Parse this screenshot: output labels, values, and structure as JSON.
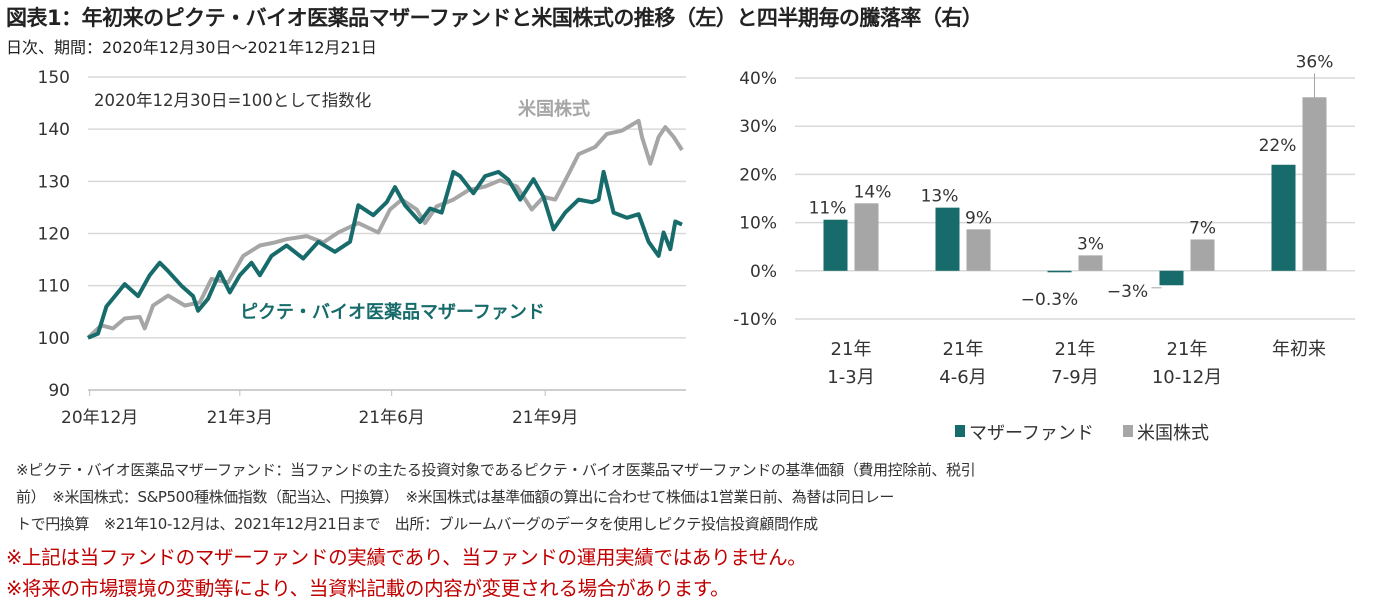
{
  "title": "図表1：年初来のピクテ・バイオ医薬品マザーファンドと米国株式の推移（左）と四半期毎の騰落率（右）",
  "subtitle": "日次、期間：2020年12月30日～2021年12月21日",
  "chart_data": [
    {
      "type": "line",
      "annotation": "2020年12月30日=100として指数化",
      "ylim": [
        90,
        150
      ],
      "yticks": [
        90,
        100,
        110,
        120,
        130,
        140,
        150
      ],
      "xlim": [
        "2020-12-30",
        "2021-12-21"
      ],
      "xticks": [
        {
          "date": "2020-12-31",
          "label": "20年12月"
        },
        {
          "date": "2021-03-31",
          "label": "21年3月"
        },
        {
          "date": "2021-06-30",
          "label": "21年6月"
        },
        {
          "date": "2021-09-30",
          "label": "21年9月"
        }
      ],
      "grid": true,
      "series": [
        {
          "name": "ピクテ・バイオ医薬品マザーファンド",
          "color": "#176b6b",
          "points": [
            [
              "2020-12-30",
              100
            ],
            [
              "2021-01-05",
              100.8
            ],
            [
              "2021-01-10",
              106
            ],
            [
              "2021-01-17",
              108.7
            ],
            [
              "2021-01-21",
              110.3
            ],
            [
              "2021-01-29",
              108
            ],
            [
              "2021-02-05",
              112
            ],
            [
              "2021-02-11",
              114.4
            ],
            [
              "2021-02-16",
              112.8
            ],
            [
              "2021-02-24",
              110
            ],
            [
              "2021-03-03",
              108
            ],
            [
              "2021-03-06",
              105.2
            ],
            [
              "2021-03-12",
              107.5
            ],
            [
              "2021-03-19",
              112.6
            ],
            [
              "2021-03-25",
              108.7
            ],
            [
              "2021-03-31",
              112
            ],
            [
              "2021-04-07",
              114.4
            ],
            [
              "2021-04-12",
              112
            ],
            [
              "2021-04-19",
              115.7
            ],
            [
              "2021-04-28",
              117.7
            ],
            [
              "2021-05-08",
              115.2
            ],
            [
              "2021-05-17",
              118.4
            ],
            [
              "2021-05-27",
              116.5
            ],
            [
              "2021-06-05",
              118.4
            ],
            [
              "2021-06-10",
              125.4
            ],
            [
              "2021-06-19",
              123.5
            ],
            [
              "2021-06-27",
              126
            ],
            [
              "2021-07-02",
              128.9
            ],
            [
              "2021-07-08",
              125.4
            ],
            [
              "2021-07-17",
              122.2
            ],
            [
              "2021-07-23",
              124.8
            ],
            [
              "2021-07-30",
              124
            ],
            [
              "2021-08-06",
              131.8
            ],
            [
              "2021-08-10",
              131
            ],
            [
              "2021-08-18",
              127.7
            ],
            [
              "2021-08-25",
              131
            ],
            [
              "2021-09-02",
              131.8
            ],
            [
              "2021-09-08",
              130.3
            ],
            [
              "2021-09-15",
              126.5
            ],
            [
              "2021-09-23",
              130.4
            ],
            [
              "2021-09-29",
              127
            ],
            [
              "2021-10-05",
              120.8
            ],
            [
              "2021-10-12",
              124
            ],
            [
              "2021-10-20",
              126.5
            ],
            [
              "2021-10-28",
              126
            ],
            [
              "2021-11-01",
              126.5
            ],
            [
              "2021-11-04",
              131.8
            ],
            [
              "2021-11-10",
              124
            ],
            [
              "2021-11-18",
              123
            ],
            [
              "2021-11-25",
              123.7
            ],
            [
              "2021-12-01",
              118.4
            ],
            [
              "2021-12-07",
              115.7
            ],
            [
              "2021-12-10",
              120.2
            ],
            [
              "2021-12-14",
              117
            ],
            [
              "2021-12-17",
              122.3
            ],
            [
              "2021-12-21",
              121.7
            ]
          ]
        },
        {
          "name": "米国株式",
          "color": "#a6a6a6",
          "points": [
            [
              "2020-12-30",
              100
            ],
            [
              "2021-01-07",
              102.4
            ],
            [
              "2021-01-14",
              101.8
            ],
            [
              "2021-01-21",
              103.7
            ],
            [
              "2021-01-30",
              104
            ],
            [
              "2021-02-02",
              101.8
            ],
            [
              "2021-02-07",
              106.2
            ],
            [
              "2021-02-16",
              108.1
            ],
            [
              "2021-02-26",
              106.2
            ],
            [
              "2021-03-07",
              106.8
            ],
            [
              "2021-03-14",
              111.3
            ],
            [
              "2021-03-24",
              110.6
            ],
            [
              "2021-04-02",
              115.7
            ],
            [
              "2021-04-12",
              117.7
            ],
            [
              "2021-04-21",
              118.3
            ],
            [
              "2021-04-28",
              118.9
            ],
            [
              "2021-05-10",
              119.5
            ],
            [
              "2021-05-20",
              118.3
            ],
            [
              "2021-05-29",
              120.2
            ],
            [
              "2021-06-10",
              122
            ],
            [
              "2021-06-22",
              120.2
            ],
            [
              "2021-06-29",
              124.6
            ],
            [
              "2021-07-06",
              126.5
            ],
            [
              "2021-07-15",
              124.6
            ],
            [
              "2021-07-20",
              122
            ],
            [
              "2021-07-27",
              125.2
            ],
            [
              "2021-08-06",
              126.5
            ],
            [
              "2021-08-15",
              128.3
            ],
            [
              "2021-08-25",
              129
            ],
            [
              "2021-09-03",
              130.2
            ],
            [
              "2021-09-13",
              129
            ],
            [
              "2021-09-22",
              124.6
            ],
            [
              "2021-09-29",
              127
            ],
            [
              "2021-10-06",
              126.5
            ],
            [
              "2021-10-13",
              130.8
            ],
            [
              "2021-10-20",
              135.2
            ],
            [
              "2021-10-30",
              136.6
            ],
            [
              "2021-11-06",
              139.1
            ],
            [
              "2021-11-15",
              139.7
            ],
            [
              "2021-11-25",
              141.6
            ],
            [
              "2021-11-27",
              138.5
            ],
            [
              "2021-12-02",
              133.4
            ],
            [
              "2021-12-07",
              138.5
            ],
            [
              "2021-12-11",
              140.4
            ],
            [
              "2021-12-16",
              138.5
            ],
            [
              "2021-12-21",
              136
            ]
          ]
        }
      ]
    },
    {
      "type": "bar",
      "ylim": [
        -10,
        40
      ],
      "yticks": [
        -10,
        0,
        10,
        20,
        30,
        40
      ],
      "ytick_labels": [
        "-10%",
        "0%",
        "10%",
        "20%",
        "30%",
        "40%"
      ],
      "grid": true,
      "legend_placement": "bottom",
      "categories": [
        [
          "21年",
          "1-3月"
        ],
        [
          "21年",
          "4-6月"
        ],
        [
          "21年",
          "7-9月"
        ],
        [
          "21年",
          "10-12月"
        ],
        [
          "年初来"
        ]
      ],
      "series": [
        {
          "name": "マザーファンド",
          "color": "#176b6b",
          "values": [
            10.6,
            13.1,
            -0.3,
            -3.0,
            22.0
          ],
          "labels": [
            "11%",
            "13%",
            "-0.3%",
            "-3%",
            "22%"
          ]
        },
        {
          "name": "米国株式",
          "color": "#a6a6a6",
          "values": [
            14.0,
            8.6,
            3.2,
            6.5,
            36.0
          ],
          "labels": [
            "14%",
            "9%",
            "3%",
            "7%",
            "36%"
          ]
        }
      ]
    }
  ],
  "notes": [
    "※ピクテ・バイオ医薬品マザーファンド：当ファンドの主たる投資対象であるピクテ・バイオ医薬品マザーファンドの基準価額（費用控除前、税引",
    "前）　※米国株式：S&P500種株価指数（配当込、円換算）　※米国株式は基準価額の算出に合わせて株価は1営業日前、為替は同日レー",
    "トで円換算　※21年10-12月は、2021年12月21日まで　出所：ブルームバーグのデータを使用しピクテ投信投資顧問作成"
  ],
  "warnings": [
    "※上記は当ファンドのマザーファンドの実績であり、当ファンドの運用実績ではありません。",
    "※将来の市場環境の変動等により、当資料記載の内容が変更される場合があります。"
  ],
  "warning_color": "#c00000"
}
